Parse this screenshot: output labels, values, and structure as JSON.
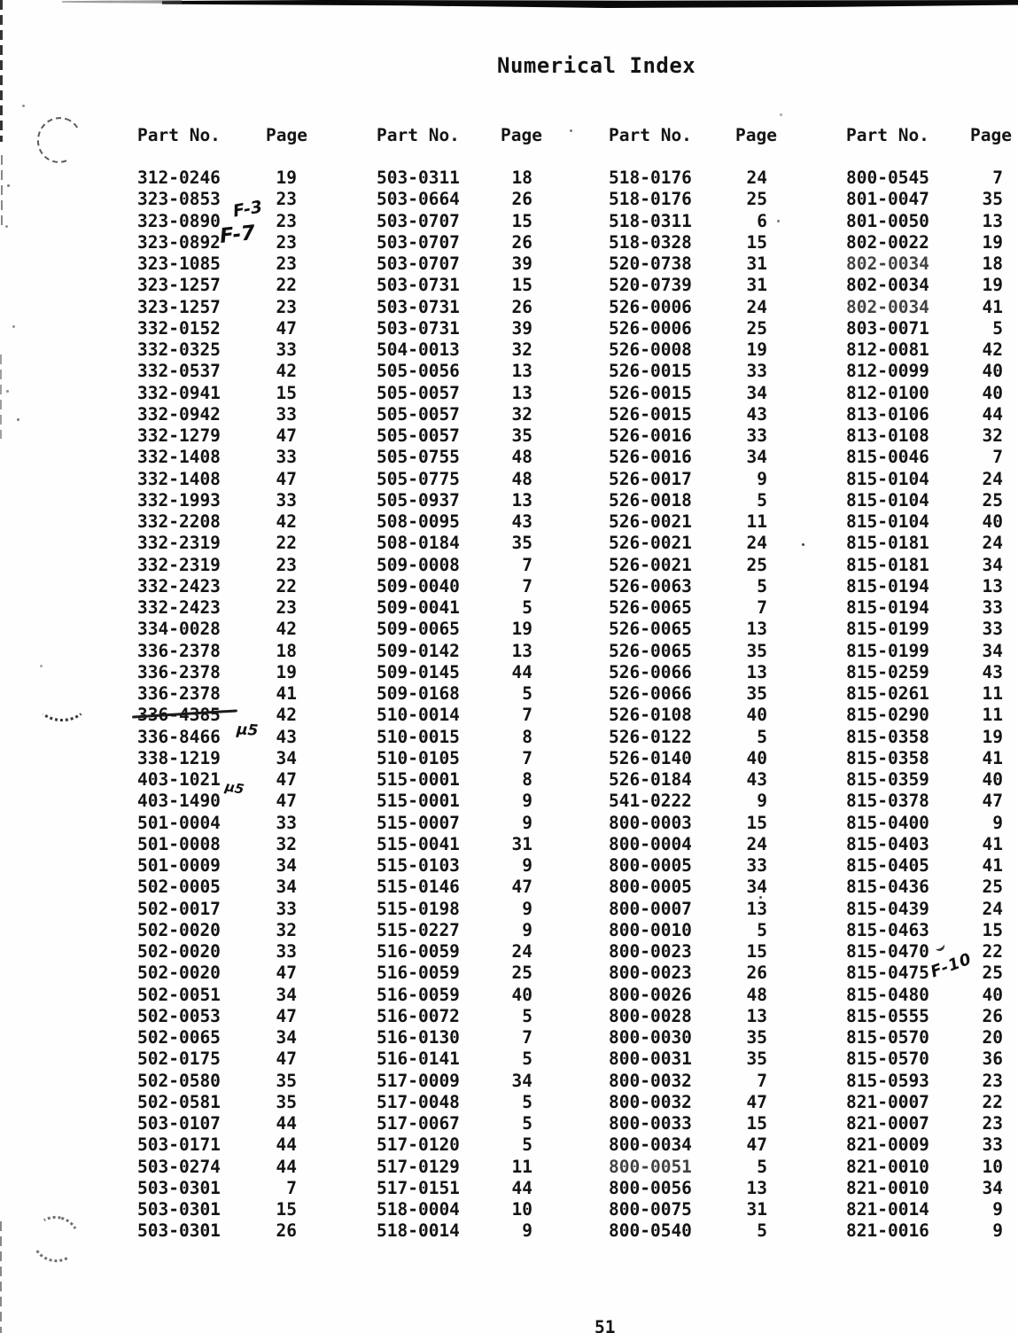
{
  "page": {
    "title": "Numerical Index",
    "page_number": "51"
  },
  "table": {
    "part_header": "Part No.",
    "page_header": "Page",
    "columns": [
      {
        "rows": [
          {
            "part": "312-0246",
            "page": "19"
          },
          {
            "part": "323-0853",
            "page": "23"
          },
          {
            "part": "323-0890",
            "page": "23",
            "note": "F-3"
          },
          {
            "part": "323-0892",
            "page": "23",
            "note": "F-7"
          },
          {
            "part": "323-1085",
            "page": "23"
          },
          {
            "part": "323-1257",
            "page": "22"
          },
          {
            "part": "323-1257",
            "page": "23"
          },
          {
            "part": "332-0152",
            "page": "47"
          },
          {
            "part": "332-0325",
            "page": "33"
          },
          {
            "part": "332-0537",
            "page": "42"
          },
          {
            "part": "332-0941",
            "page": "15"
          },
          {
            "part": "332-0942",
            "page": "33"
          },
          {
            "part": "332-1279",
            "page": "47"
          },
          {
            "part": "332-1408",
            "page": "33"
          },
          {
            "part": "332-1408",
            "page": "47"
          },
          {
            "part": "332-1993",
            "page": "33"
          },
          {
            "part": "332-2208",
            "page": "42"
          },
          {
            "part": "332-2319",
            "page": "22"
          },
          {
            "part": "332-2319",
            "page": "23"
          },
          {
            "part": "332-2423",
            "page": "22"
          },
          {
            "part": "332-2423",
            "page": "23"
          },
          {
            "part": "334-0028",
            "page": "42"
          },
          {
            "part": "336-2378",
            "page": "18"
          },
          {
            "part": "336-2378",
            "page": "19"
          },
          {
            "part": "336-2378",
            "page": "41"
          },
          {
            "part": "336-4385",
            "page": "42",
            "strike": true
          },
          {
            "part": "336-8466",
            "page": "43",
            "note": "µ5"
          },
          {
            "part": "338-1219",
            "page": "34"
          },
          {
            "part": "403-1021",
            "page": "47"
          },
          {
            "part": "403-1490",
            "page": "47",
            "note": "µ5"
          },
          {
            "part": "501-0004",
            "page": "33"
          },
          {
            "part": "501-0008",
            "page": "32"
          },
          {
            "part": "501-0009",
            "page": "34"
          },
          {
            "part": "502-0005",
            "page": "34"
          },
          {
            "part": "502-0017",
            "page": "33"
          },
          {
            "part": "502-0020",
            "page": "32"
          },
          {
            "part": "502-0020",
            "page": "33"
          },
          {
            "part": "502-0020",
            "page": "47"
          },
          {
            "part": "502-0051",
            "page": "34"
          },
          {
            "part": "502-0053",
            "page": "47"
          },
          {
            "part": "502-0065",
            "page": "34"
          },
          {
            "part": "502-0175",
            "page": "47"
          },
          {
            "part": "502-0580",
            "page": "35"
          },
          {
            "part": "502-0581",
            "page": "35"
          },
          {
            "part": "503-0107",
            "page": "44"
          },
          {
            "part": "503-0171",
            "page": "44"
          },
          {
            "part": "503-0274",
            "page": "44"
          },
          {
            "part": "503-0301",
            "page": "7"
          },
          {
            "part": "503-0301",
            "page": "15"
          },
          {
            "part": "503-0301",
            "page": "26"
          }
        ]
      },
      {
        "rows": [
          {
            "part": "503-0311",
            "page": "18"
          },
          {
            "part": "503-0664",
            "page": "26"
          },
          {
            "part": "503-0707",
            "page": "15"
          },
          {
            "part": "503-0707",
            "page": "26"
          },
          {
            "part": "503-0707",
            "page": "39"
          },
          {
            "part": "503-0731",
            "page": "15"
          },
          {
            "part": "503-0731",
            "page": "26"
          },
          {
            "part": "503-0731",
            "page": "39"
          },
          {
            "part": "504-0013",
            "page": "32"
          },
          {
            "part": "505-0056",
            "page": "13"
          },
          {
            "part": "505-0057",
            "page": "13"
          },
          {
            "part": "505-0057",
            "page": "32"
          },
          {
            "part": "505-0057",
            "page": "35"
          },
          {
            "part": "505-0755",
            "page": "48"
          },
          {
            "part": "505-0775",
            "page": "48"
          },
          {
            "part": "505-0937",
            "page": "13"
          },
          {
            "part": "508-0095",
            "page": "43"
          },
          {
            "part": "508-0184",
            "page": "35"
          },
          {
            "part": "509-0008",
            "page": "7"
          },
          {
            "part": "509-0040",
            "page": "7"
          },
          {
            "part": "509-0041",
            "page": "5"
          },
          {
            "part": "509-0065",
            "page": "19"
          },
          {
            "part": "509-0142",
            "page": "13"
          },
          {
            "part": "509-0145",
            "page": "44"
          },
          {
            "part": "509-0168",
            "page": "5"
          },
          {
            "part": "510-0014",
            "page": "7"
          },
          {
            "part": "510-0015",
            "page": "8"
          },
          {
            "part": "510-0105",
            "page": "7"
          },
          {
            "part": "515-0001",
            "page": "8"
          },
          {
            "part": "515-0001",
            "page": "9"
          },
          {
            "part": "515-0007",
            "page": "9"
          },
          {
            "part": "515-0041",
            "page": "31"
          },
          {
            "part": "515-0103",
            "page": "9"
          },
          {
            "part": "515-0146",
            "page": "47"
          },
          {
            "part": "515-0198",
            "page": "9"
          },
          {
            "part": "515-0227",
            "page": "9"
          },
          {
            "part": "516-0059",
            "page": "24"
          },
          {
            "part": "516-0059",
            "page": "25"
          },
          {
            "part": "516-0059",
            "page": "40"
          },
          {
            "part": "516-0072",
            "page": "5"
          },
          {
            "part": "516-0130",
            "page": "7"
          },
          {
            "part": "516-0141",
            "page": "5"
          },
          {
            "part": "517-0009",
            "page": "34"
          },
          {
            "part": "517-0048",
            "page": "5"
          },
          {
            "part": "517-0067",
            "page": "5"
          },
          {
            "part": "517-0120",
            "page": "5"
          },
          {
            "part": "517-0129",
            "page": "11"
          },
          {
            "part": "517-0151",
            "page": "44"
          },
          {
            "part": "518-0004",
            "page": "10"
          },
          {
            "part": "518-0014",
            "page": "9"
          }
        ]
      },
      {
        "rows": [
          {
            "part": "518-0176",
            "page": "24"
          },
          {
            "part": "518-0176",
            "page": "25"
          },
          {
            "part": "518-0311",
            "page": "6"
          },
          {
            "part": "518-0328",
            "page": "15"
          },
          {
            "part": "520-0738",
            "page": "31"
          },
          {
            "part": "520-0739",
            "page": "31"
          },
          {
            "part": "526-0006",
            "page": "24"
          },
          {
            "part": "526-0006",
            "page": "25"
          },
          {
            "part": "526-0008",
            "page": "19"
          },
          {
            "part": "526-0015",
            "page": "33"
          },
          {
            "part": "526-0015",
            "page": "34"
          },
          {
            "part": "526-0015",
            "page": "43"
          },
          {
            "part": "526-0016",
            "page": "33"
          },
          {
            "part": "526-0016",
            "page": "34"
          },
          {
            "part": "526-0017",
            "page": "9"
          },
          {
            "part": "526-0018",
            "page": "5"
          },
          {
            "part": "526-0021",
            "page": "11"
          },
          {
            "part": "526-0021",
            "page": "24"
          },
          {
            "part": "526-0021",
            "page": "25"
          },
          {
            "part": "526-0063",
            "page": "5"
          },
          {
            "part": "526-0065",
            "page": "7"
          },
          {
            "part": "526-0065",
            "page": "13"
          },
          {
            "part": "526-0065",
            "page": "35"
          },
          {
            "part": "526-0066",
            "page": "13"
          },
          {
            "part": "526-0066",
            "page": "35"
          },
          {
            "part": "526-0108",
            "page": "40"
          },
          {
            "part": "526-0122",
            "page": "5"
          },
          {
            "part": "526-0140",
            "page": "40"
          },
          {
            "part": "526-0184",
            "page": "43"
          },
          {
            "part": "541-0222",
            "page": "9"
          },
          {
            "part": "800-0003",
            "page": "15"
          },
          {
            "part": "800-0004",
            "page": "24"
          },
          {
            "part": "800-0005",
            "page": "33"
          },
          {
            "part": "800-0005",
            "page": "34"
          },
          {
            "part": "800-0007",
            "page": "13"
          },
          {
            "part": "800-0010",
            "page": "5"
          },
          {
            "part": "800-0023",
            "page": "15"
          },
          {
            "part": "800-0023",
            "page": "26"
          },
          {
            "part": "800-0026",
            "page": "48"
          },
          {
            "part": "800-0028",
            "page": "13"
          },
          {
            "part": "800-0030",
            "page": "35"
          },
          {
            "part": "800-0031",
            "page": "35"
          },
          {
            "part": "800-0032",
            "page": "7"
          },
          {
            "part": "800-0032",
            "page": "47"
          },
          {
            "part": "800-0033",
            "page": "15"
          },
          {
            "part": "800-0034",
            "page": "47"
          },
          {
            "part": "800-0051",
            "page": "5",
            "faded": true
          },
          {
            "part": "800-0056",
            "page": "13"
          },
          {
            "part": "800-0075",
            "page": "31"
          },
          {
            "part": "800-0540",
            "page": "5"
          }
        ]
      },
      {
        "rows": [
          {
            "part": "800-0545",
            "page": "7"
          },
          {
            "part": "801-0047",
            "page": "35"
          },
          {
            "part": "801-0050",
            "page": "13"
          },
          {
            "part": "802-0022",
            "page": "19"
          },
          {
            "part": "802-0034",
            "page": "18",
            "faded": true
          },
          {
            "part": "802-0034",
            "page": "19"
          },
          {
            "part": "802-0034",
            "page": "41",
            "faded": true
          },
          {
            "part": "803-0071",
            "page": "5"
          },
          {
            "part": "812-0081",
            "page": "42"
          },
          {
            "part": "812-0099",
            "page": "40"
          },
          {
            "part": "812-0100",
            "page": "40"
          },
          {
            "part": "813-0106",
            "page": "44"
          },
          {
            "part": "813-0108",
            "page": "32"
          },
          {
            "part": "815-0046",
            "page": "7"
          },
          {
            "part": "815-0104",
            "page": "24"
          },
          {
            "part": "815-0104",
            "page": "25"
          },
          {
            "part": "815-0104",
            "page": "40"
          },
          {
            "part": "815-0181",
            "page": "24"
          },
          {
            "part": "815-0181",
            "page": "34"
          },
          {
            "part": "815-0194",
            "page": "13"
          },
          {
            "part": "815-0194",
            "page": "33"
          },
          {
            "part": "815-0199",
            "page": "33"
          },
          {
            "part": "815-0199",
            "page": "34"
          },
          {
            "part": "815-0259",
            "page": "43"
          },
          {
            "part": "815-0261",
            "page": "11"
          },
          {
            "part": "815-0290",
            "page": "11"
          },
          {
            "part": "815-0358",
            "page": "19"
          },
          {
            "part": "815-0358",
            "page": "41"
          },
          {
            "part": "815-0359",
            "page": "40"
          },
          {
            "part": "815-0378",
            "page": "47"
          },
          {
            "part": "815-0400",
            "page": "9"
          },
          {
            "part": "815-0403",
            "page": "41"
          },
          {
            "part": "815-0405",
            "page": "41"
          },
          {
            "part": "815-0436",
            "page": "25"
          },
          {
            "part": "815-0439",
            "page": "24"
          },
          {
            "part": "815-0463",
            "page": "15"
          },
          {
            "part": "815-0470",
            "page": "22"
          },
          {
            "part": "815-0475",
            "page": "25",
            "note": "F-10"
          },
          {
            "part": "815-0480",
            "page": "40"
          },
          {
            "part": "815-0555",
            "page": "26"
          },
          {
            "part": "815-0570",
            "page": "20"
          },
          {
            "part": "815-0570",
            "page": "36"
          },
          {
            "part": "815-0593",
            "page": "23"
          },
          {
            "part": "821-0007",
            "page": "22"
          },
          {
            "part": "821-0007",
            "page": "23"
          },
          {
            "part": "821-0009",
            "page": "33"
          },
          {
            "part": "821-0010",
            "page": "10"
          },
          {
            "part": "821-0010",
            "page": "34"
          },
          {
            "part": "821-0014",
            "page": "9"
          },
          {
            "part": "821-0016",
            "page": "9"
          }
        ]
      }
    ]
  }
}
